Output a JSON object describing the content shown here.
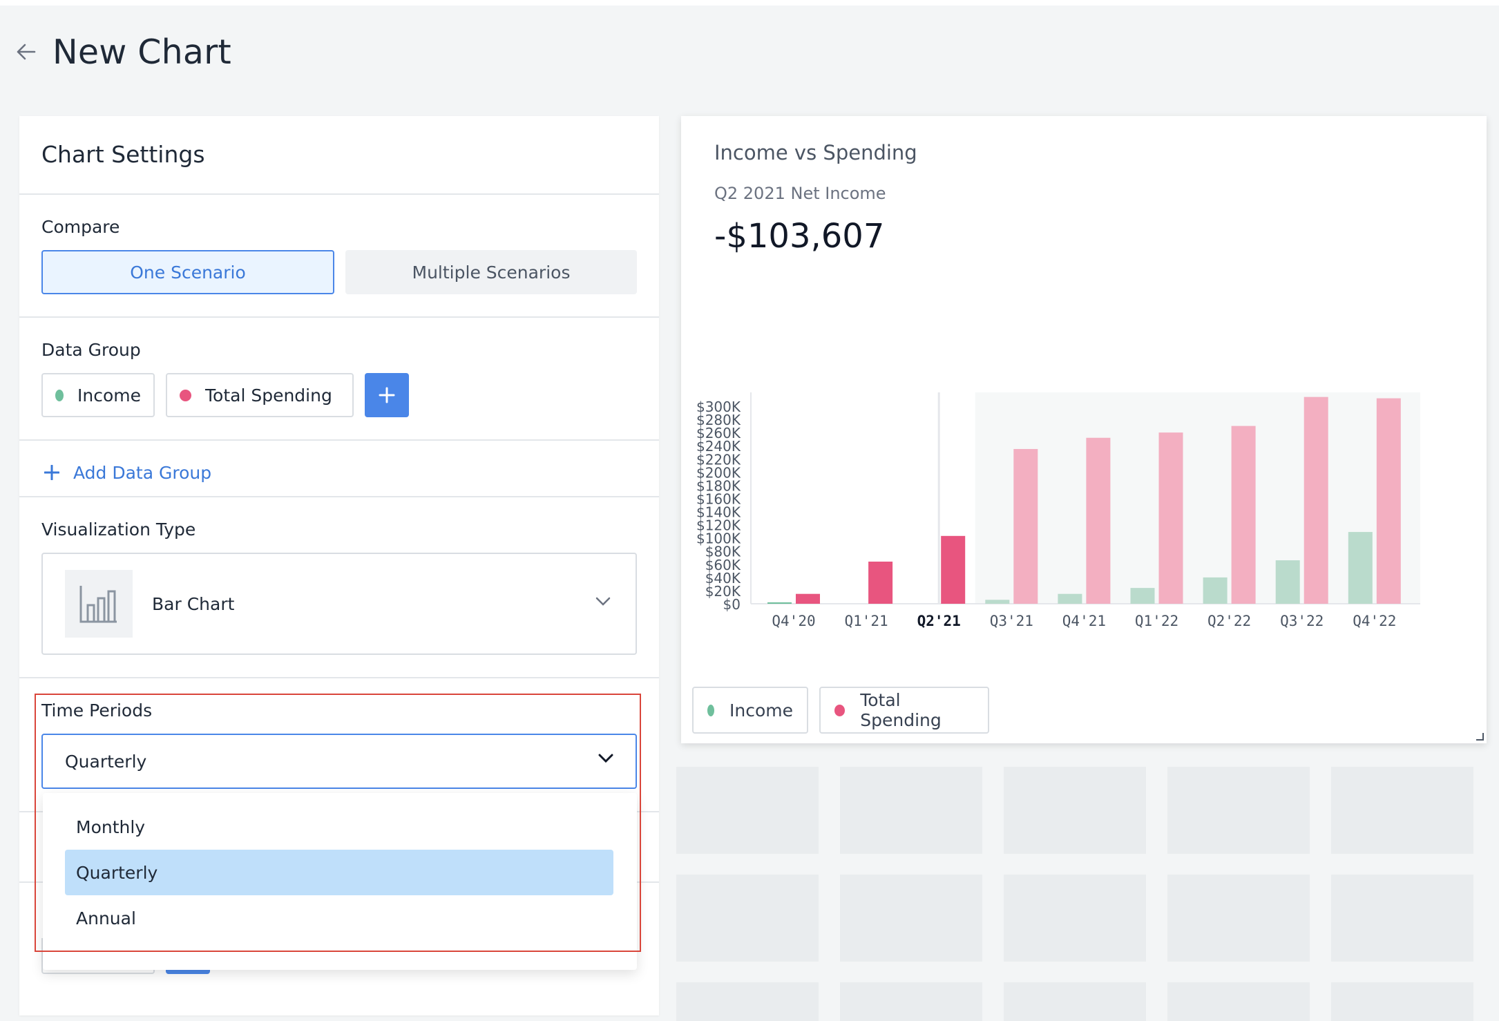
{
  "page": {
    "title": "New Chart"
  },
  "settings": {
    "title": "Chart Settings",
    "compare": {
      "label": "Compare",
      "options": [
        "One Scenario",
        "Multiple Scenarios"
      ],
      "selected": "One Scenario"
    },
    "data_group": {
      "label": "Data Group",
      "items": [
        {
          "label": "Income",
          "color": "#6fbf9c"
        },
        {
          "label": "Total Spending",
          "color": "#e8557f"
        }
      ],
      "add_button_icon": "plus-icon"
    },
    "add_data_group": "Add Data Group",
    "visualization": {
      "label": "Visualization Type",
      "value": "Bar Chart",
      "icon": "bar-chart-icon"
    },
    "time_periods": {
      "label": "Time Periods",
      "value": "Quarterly",
      "options": [
        "Monthly",
        "Quarterly",
        "Annual"
      ],
      "selected": "Quarterly"
    }
  },
  "chart_card": {
    "title": "Income vs Spending",
    "subtitle": "Q2 2021 Net Income",
    "value": "-$103,607",
    "legend": [
      {
        "label": "Income",
        "color": "#6fbf9c"
      },
      {
        "label": "Total Spending",
        "color": "#e8557f"
      }
    ]
  },
  "colors": {
    "accent": "#4a86e8",
    "income": "#6fbf9c",
    "income_light": "#badbcc",
    "spending": "#e8557f",
    "spending_light": "#f3afc1",
    "highlight_box": "#d9453a"
  },
  "chart_data": {
    "type": "bar",
    "categories": [
      "Q4'20",
      "Q1'21",
      "Q2'21",
      "Q3'21",
      "Q4'21",
      "Q1'22",
      "Q2'22",
      "Q3'22",
      "Q4'22"
    ],
    "highlighted_category": "Q2'21",
    "forecast_from": "Q3'21",
    "series": [
      {
        "name": "Income",
        "values": [
          1000,
          0,
          0,
          6000,
          15000,
          24000,
          40000,
          66000,
          109000
        ]
      },
      {
        "name": "Total Spending",
        "values": [
          15000,
          64000,
          103000,
          235000,
          252000,
          260000,
          270000,
          314000,
          312000
        ]
      }
    ],
    "y_ticks": [
      "$300K",
      "$280K",
      "$260K",
      "$240K",
      "$220K",
      "$200K",
      "$180K",
      "$160K",
      "$140K",
      "$120K",
      "$100K",
      "$80K",
      "$60K",
      "$40K",
      "$20K",
      "$0"
    ],
    "ylim": [
      0,
      310000
    ],
    "legend": "bottom-left",
    "grid": false
  }
}
